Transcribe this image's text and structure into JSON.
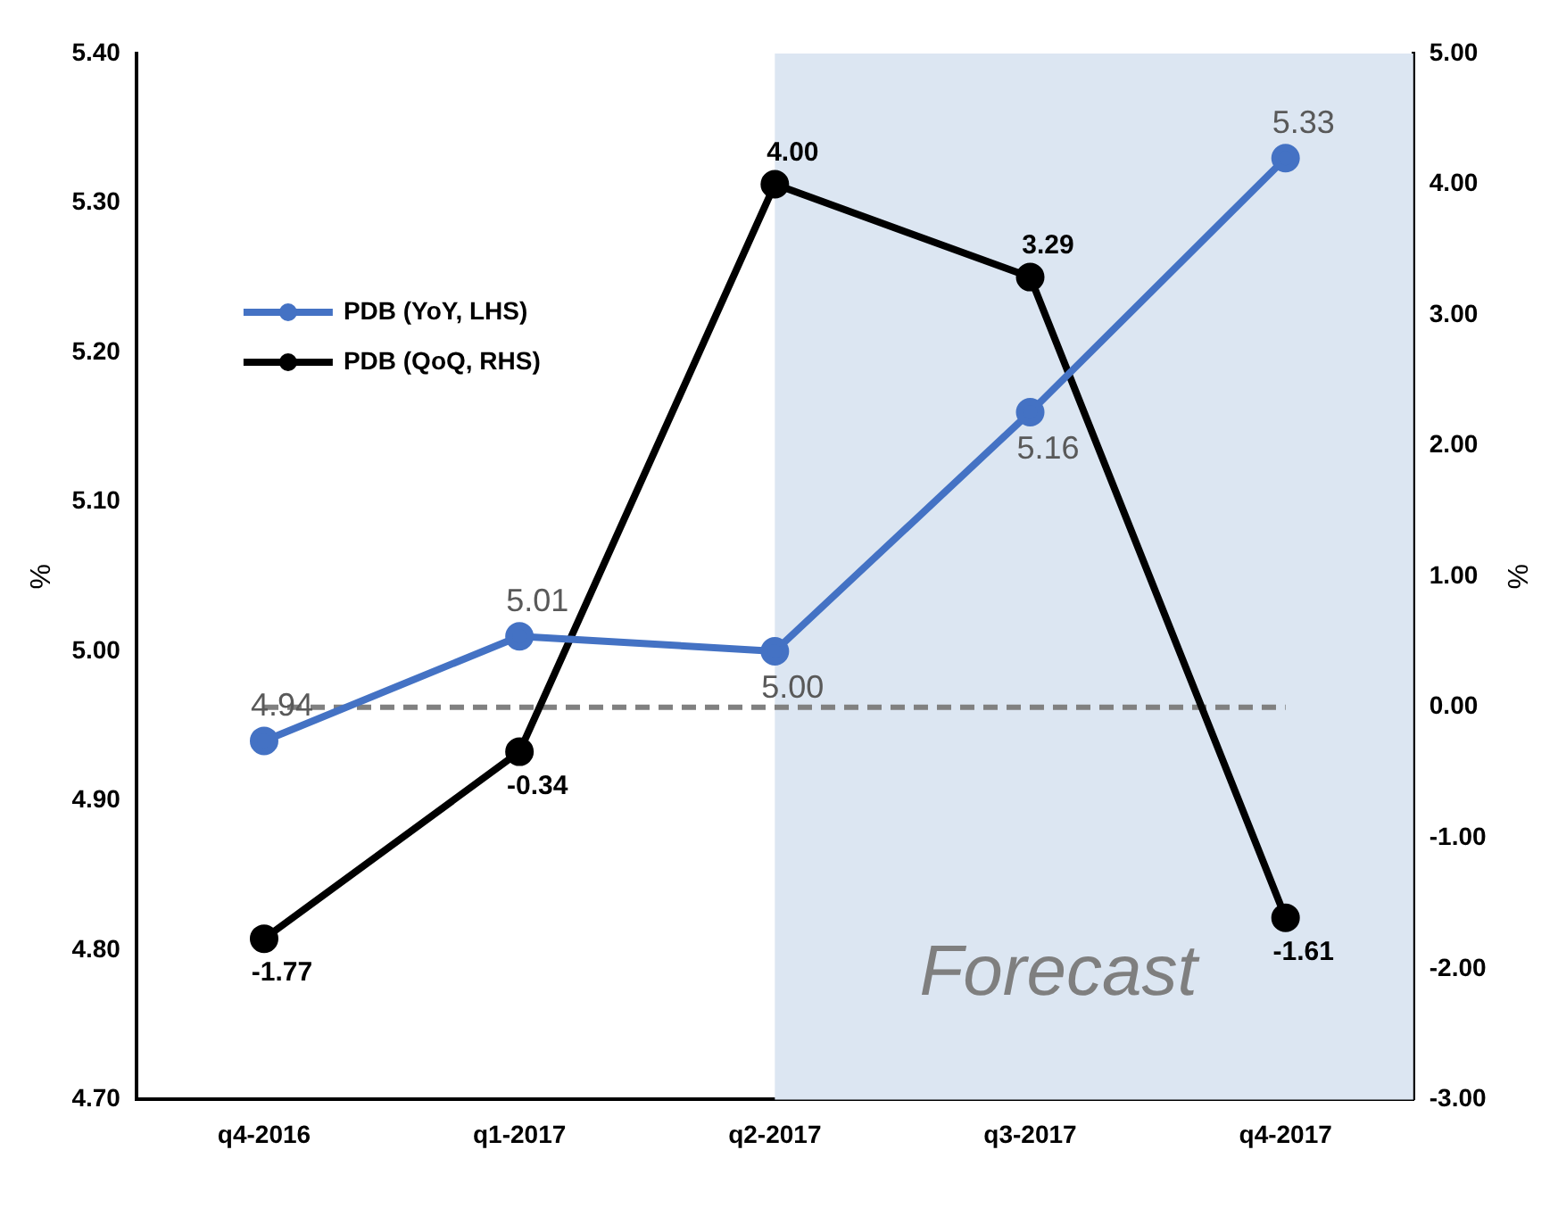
{
  "chart_data": {
    "type": "line",
    "ylabel": "%",
    "y2label": "%",
    "categories": [
      "q4-2016",
      "q1-2017",
      "q2-2017",
      "q3-2017",
      "q4-2017"
    ],
    "series": [
      {
        "name": "PDB (YoY, LHS)",
        "color": "#4472c4",
        "values": [
          4.94,
          5.01,
          5.0,
          5.16,
          5.33
        ],
        "value_labels": [
          "4.94",
          "5.01",
          "5.00",
          "5.16",
          "5.33"
        ]
      },
      {
        "name": "PDB (QoQ, RHS)",
        "color": "#000000",
        "axis": "y2",
        "values": [
          -1.77,
          -0.34,
          4.0,
          3.29,
          -1.61
        ],
        "value_labels": [
          "-1.77",
          "-0.34",
          "4.00",
          "3.29",
          "-1.61"
        ]
      }
    ],
    "ylim": [
      4.7,
      5.4
    ],
    "yticks": [
      {
        "value": 4.7,
        "label": "4.70"
      },
      {
        "value": 4.8,
        "label": "4.80"
      },
      {
        "value": 4.9,
        "label": "4.90"
      },
      {
        "value": 5.0,
        "label": "5.00"
      },
      {
        "value": 5.1,
        "label": "5.10"
      },
      {
        "value": 5.2,
        "label": "5.20"
      },
      {
        "value": 5.3,
        "label": "5.30"
      },
      {
        "value": 5.4,
        "label": "5.40"
      }
    ],
    "y2lim": [
      -3,
      5
    ],
    "y2ticks": [
      {
        "value": -3,
        "label": "-3.00"
      },
      {
        "value": -2,
        "label": "-2.00"
      },
      {
        "value": -1,
        "label": "-1.00"
      },
      {
        "value": 0,
        "label": "0.00"
      },
      {
        "value": 1,
        "label": "1.00"
      },
      {
        "value": 2,
        "label": "2.00"
      },
      {
        "value": 3,
        "label": "3.00"
      },
      {
        "value": 4,
        "label": "4.00"
      },
      {
        "value": 5,
        "label": "5.00"
      }
    ],
    "ref_lines": [
      {
        "axis": "y2",
        "value": 0,
        "color": "#808080",
        "line_style": "dashed"
      }
    ],
    "bands": [
      {
        "axis": "x",
        "from": "q2-2017",
        "to": "q4-2017",
        "label": "Forecast",
        "color": "#dce6f2"
      }
    ],
    "legend": "top left",
    "grid": false,
    "marker": "circle",
    "line_style": "solid"
  }
}
